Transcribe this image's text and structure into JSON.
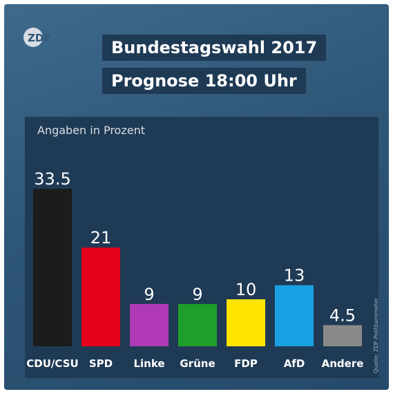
{
  "header": {
    "logo_text": "ZDF",
    "title_line1": "Bundestagswahl 2017",
    "title_line2": "Prognose 18:00 Uhr"
  },
  "source_note": "Quelle: ZDF-Politbarometer",
  "colors": {
    "background": "#2e5677",
    "panel": "#1f3a55",
    "CDU/CSU": "#1c1c1c",
    "SPD": "#e3001b",
    "Linke": "#b03ab5",
    "Grüne": "#1e9e2a",
    "FDP": "#ffe400",
    "AfD": "#19a1e3",
    "Andere": "#8a8a8a"
  },
  "chart_data": {
    "type": "bar",
    "title": "Bundestagswahl 2017",
    "subtitle": "Angaben in Prozent",
    "categories": [
      "CDU/CSU",
      "SPD",
      "Linke",
      "Grüne",
      "FDP",
      "AfD",
      "Andere"
    ],
    "values": [
      33.5,
      21,
      9,
      9,
      10,
      13,
      4.5
    ],
    "value_labels": [
      "33.5",
      "21",
      "9",
      "9",
      "10",
      "13",
      "4.5"
    ],
    "ylim": [
      0,
      40
    ],
    "grid": false,
    "legend": "none"
  }
}
